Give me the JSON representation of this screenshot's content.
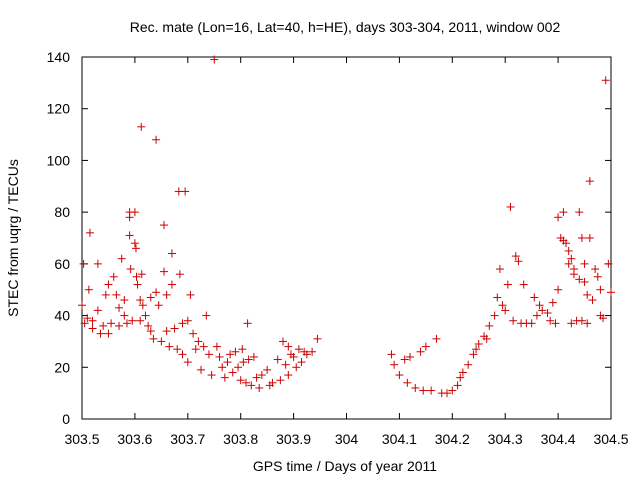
{
  "chart_data": {
    "type": "scatter",
    "title": "Rec. mate (Lon=16, Lat=40, h=HE), days 303-304, 2011, window 002",
    "xlabel": "GPS time / Days of year 2011",
    "ylabel": "STEC from uqrg / TECUs",
    "xlim": [
      303.5,
      304.5
    ],
    "ylim": [
      0,
      140
    ],
    "xticks": [
      "303.5",
      "303.6",
      "303.7",
      "303.8",
      "303.9",
      "304",
      "304.1",
      "304.2",
      "304.3",
      "304.4",
      "304.5"
    ],
    "yticks": [
      "0",
      "20",
      "40",
      "60",
      "80",
      "100",
      "120",
      "140"
    ],
    "grid": false,
    "marker": "plus",
    "color": "#cc0000",
    "points": [
      [
        303.5,
        44
      ],
      [
        303.503,
        60
      ],
      [
        303.505,
        37
      ],
      [
        303.51,
        39
      ],
      [
        303.513,
        50
      ],
      [
        303.515,
        72
      ],
      [
        303.52,
        35
      ],
      [
        303.52,
        38
      ],
      [
        303.53,
        60
      ],
      [
        303.53,
        42
      ],
      [
        303.535,
        33
      ],
      [
        303.54,
        36
      ],
      [
        303.545,
        48
      ],
      [
        303.55,
        52
      ],
      [
        303.55,
        33
      ],
      [
        303.555,
        37
      ],
      [
        303.56,
        55
      ],
      [
        303.565,
        48
      ],
      [
        303.57,
        43
      ],
      [
        303.57,
        36
      ],
      [
        303.575,
        62
      ],
      [
        303.58,
        46
      ],
      [
        303.58,
        40
      ],
      [
        303.585,
        37
      ],
      [
        303.59,
        80
      ],
      [
        303.59,
        78
      ],
      [
        303.59,
        71
      ],
      [
        303.592,
        58
      ],
      [
        303.595,
        38
      ],
      [
        303.6,
        80
      ],
      [
        303.6,
        68
      ],
      [
        303.602,
        66
      ],
      [
        303.603,
        55
      ],
      [
        303.605,
        52
      ],
      [
        303.61,
        46
      ],
      [
        303.61,
        38
      ],
      [
        303.612,
        113
      ],
      [
        303.613,
        56
      ],
      [
        303.615,
        44
      ],
      [
        303.62,
        40
      ],
      [
        303.625,
        36
      ],
      [
        303.63,
        47
      ],
      [
        303.63,
        34
      ],
      [
        303.635,
        31
      ],
      [
        303.64,
        108
      ],
      [
        303.64,
        49
      ],
      [
        303.645,
        44
      ],
      [
        303.65,
        30
      ],
      [
        303.655,
        75
      ],
      [
        303.655,
        57
      ],
      [
        303.66,
        48
      ],
      [
        303.66,
        34
      ],
      [
        303.665,
        28
      ],
      [
        303.67,
        64
      ],
      [
        303.67,
        52
      ],
      [
        303.675,
        35
      ],
      [
        303.68,
        27
      ],
      [
        303.683,
        88
      ],
      [
        303.685,
        56
      ],
      [
        303.69,
        37
      ],
      [
        303.69,
        25
      ],
      [
        303.695,
        88
      ],
      [
        303.7,
        38
      ],
      [
        303.7,
        22
      ],
      [
        303.705,
        48
      ],
      [
        303.71,
        33
      ],
      [
        303.715,
        27
      ],
      [
        303.72,
        30
      ],
      [
        303.725,
        19
      ],
      [
        303.73,
        28
      ],
      [
        303.735,
        40
      ],
      [
        303.74,
        25
      ],
      [
        303.745,
        17
      ],
      [
        303.75,
        139
      ],
      [
        303.755,
        28
      ],
      [
        303.76,
        24
      ],
      [
        303.765,
        20
      ],
      [
        303.77,
        16
      ],
      [
        303.775,
        22
      ],
      [
        303.78,
        25
      ],
      [
        303.785,
        18
      ],
      [
        303.79,
        26
      ],
      [
        303.795,
        20
      ],
      [
        303.8,
        15
      ],
      [
        303.803,
        27
      ],
      [
        303.805,
        22
      ],
      [
        303.81,
        14
      ],
      [
        303.813,
        37
      ],
      [
        303.815,
        23
      ],
      [
        303.82,
        13
      ],
      [
        303.825,
        24
      ],
      [
        303.83,
        16
      ],
      [
        303.835,
        12
      ],
      [
        303.84,
        17
      ],
      [
        303.85,
        19
      ],
      [
        303.855,
        13
      ],
      [
        303.86,
        14
      ],
      [
        303.87,
        23
      ],
      [
        303.875,
        15
      ],
      [
        303.88,
        30
      ],
      [
        303.885,
        21
      ],
      [
        303.89,
        28
      ],
      [
        303.89,
        17
      ],
      [
        303.895,
        25
      ],
      [
        303.9,
        24
      ],
      [
        303.905,
        20
      ],
      [
        303.91,
        27
      ],
      [
        303.915,
        22
      ],
      [
        303.92,
        26
      ],
      [
        303.925,
        25
      ],
      [
        303.935,
        26
      ],
      [
        303.945,
        31
      ],
      [
        304.085,
        25
      ],
      [
        304.09,
        21
      ],
      [
        304.1,
        17
      ],
      [
        304.11,
        23
      ],
      [
        304.115,
        14
      ],
      [
        304.12,
        24
      ],
      [
        304.13,
        12
      ],
      [
        304.14,
        26
      ],
      [
        304.145,
        11
      ],
      [
        304.15,
        28
      ],
      [
        304.16,
        11
      ],
      [
        304.17,
        31
      ],
      [
        304.18,
        10
      ],
      [
        304.19,
        10
      ],
      [
        304.2,
        11
      ],
      [
        304.21,
        13
      ],
      [
        304.215,
        16
      ],
      [
        304.22,
        18
      ],
      [
        304.23,
        21
      ],
      [
        304.24,
        25
      ],
      [
        304.245,
        27
      ],
      [
        304.25,
        29
      ],
      [
        304.26,
        32
      ],
      [
        304.265,
        31
      ],
      [
        304.27,
        36
      ],
      [
        304.28,
        40
      ],
      [
        304.285,
        47
      ],
      [
        304.29,
        58
      ],
      [
        304.295,
        44
      ],
      [
        304.3,
        42
      ],
      [
        304.305,
        52
      ],
      [
        304.31,
        82
      ],
      [
        304.315,
        38
      ],
      [
        304.32,
        63
      ],
      [
        304.325,
        61
      ],
      [
        304.33,
        37
      ],
      [
        304.335,
        52
      ],
      [
        304.34,
        37
      ],
      [
        304.35,
        37
      ],
      [
        304.355,
        47
      ],
      [
        304.36,
        40
      ],
      [
        304.365,
        44
      ],
      [
        304.37,
        42
      ],
      [
        304.38,
        41
      ],
      [
        304.385,
        38
      ],
      [
        304.39,
        45
      ],
      [
        304.395,
        37
      ],
      [
        304.4,
        78
      ],
      [
        304.4,
        50
      ],
      [
        304.405,
        70
      ],
      [
        304.41,
        80
      ],
      [
        304.41,
        69
      ],
      [
        304.415,
        68
      ],
      [
        304.42,
        65
      ],
      [
        304.42,
        60
      ],
      [
        304.425,
        62
      ],
      [
        304.425,
        37
      ],
      [
        304.43,
        56
      ],
      [
        304.43,
        58
      ],
      [
        304.435,
        38
      ],
      [
        304.44,
        80
      ],
      [
        304.44,
        54
      ],
      [
        304.445,
        70
      ],
      [
        304.445,
        38
      ],
      [
        304.45,
        60
      ],
      [
        304.45,
        53
      ],
      [
        304.455,
        48
      ],
      [
        304.455,
        37
      ],
      [
        304.46,
        92
      ],
      [
        304.46,
        70
      ],
      [
        304.465,
        46
      ],
      [
        304.47,
        58
      ],
      [
        304.475,
        55
      ],
      [
        304.48,
        50
      ],
      [
        304.48,
        40
      ],
      [
        304.485,
        39
      ],
      [
        304.49,
        131
      ],
      [
        304.495,
        60
      ],
      [
        304.5,
        49
      ]
    ]
  }
}
